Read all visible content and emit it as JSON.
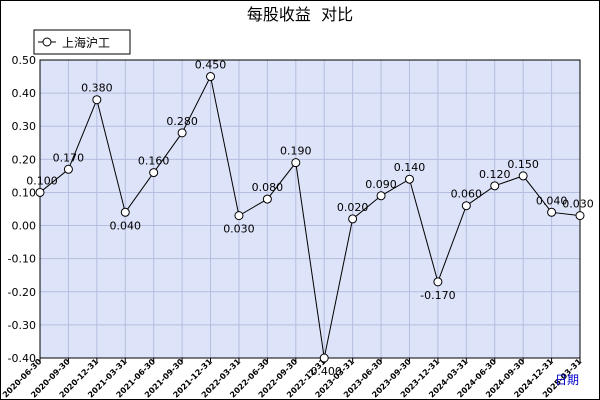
{
  "chart_data": {
    "type": "line",
    "title": "每股收益  对比",
    "legend": {
      "entries": [
        "上海沪工"
      ],
      "placement": "top-left"
    },
    "xlabel": "日期",
    "ylabel": "",
    "ylim": [
      -0.4,
      0.5
    ],
    "yticks": [
      "0.50",
      "0.40",
      "0.30",
      "0.20",
      "0.10",
      "0.00",
      "-0.10",
      "-0.20",
      "-0.30",
      "-0.40"
    ],
    "grid": true,
    "x": [
      "2020-06-30",
      "2020-09-30",
      "2020-12-31",
      "2021-03-31",
      "2021-06-30",
      "2021-09-30",
      "2021-12-31",
      "2022-03-31",
      "2022-06-30",
      "2022-09-30",
      "2022-12-31",
      "2023-03-31",
      "2023-06-30",
      "2023-09-30",
      "2023-12-31",
      "2024-03-31",
      "2024-06-30",
      "2024-09-30",
      "2024-12-31",
      "2025-03-31"
    ],
    "series": [
      {
        "name": "上海沪工",
        "color": "#000000",
        "values": [
          0.1,
          0.17,
          0.38,
          0.04,
          0.16,
          0.28,
          0.45,
          0.03,
          0.08,
          0.19,
          -0.4,
          0.02,
          0.09,
          0.14,
          -0.17,
          0.06,
          0.12,
          0.15,
          0.04,
          0.03
        ],
        "labels": [
          "0.100",
          "0.170",
          "0.380",
          "0.040",
          "0.160",
          "0.280",
          "0.450",
          "0.030",
          "0.080",
          "0.190",
          "-0.400",
          "0.020",
          "0.090",
          "0.140",
          "-0.170",
          "0.060",
          "0.120",
          "0.150",
          "0.040",
          "0.030"
        ]
      }
    ],
    "colors": {
      "plot_bg": "#dde3f8",
      "grid": "#b4bedf",
      "line": "#000000"
    }
  }
}
